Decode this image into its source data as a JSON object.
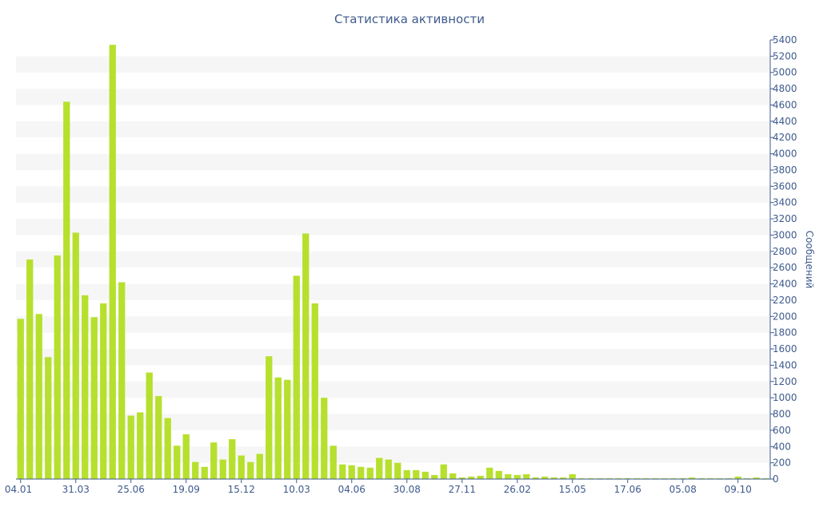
{
  "chart_data": {
    "type": "bar",
    "title": "Статистика активности",
    "ylabel": "Сообщений",
    "xlabel": "",
    "ylim": [
      0,
      5400
    ],
    "y_ticks": [
      0,
      200,
      400,
      600,
      800,
      1000,
      1200,
      1400,
      1600,
      1800,
      2000,
      2200,
      2400,
      2600,
      2800,
      3000,
      3200,
      3400,
      3600,
      3800,
      4000,
      4200,
      4400,
      4600,
      4800,
      5000,
      5200,
      5400
    ],
    "y_axis_position": "right",
    "grid": "alternating horizontal bands",
    "x_tick_labels": [
      {
        "index": 0,
        "label": "04.01"
      },
      {
        "index": 6,
        "label": "31.03"
      },
      {
        "index": 12,
        "label": "25.06"
      },
      {
        "index": 18,
        "label": "19.09"
      },
      {
        "index": 24,
        "label": "15.12"
      },
      {
        "index": 30,
        "label": "10.03"
      },
      {
        "index": 36,
        "label": "04.06"
      },
      {
        "index": 42,
        "label": "30.08"
      },
      {
        "index": 48,
        "label": "27.11"
      },
      {
        "index": 54,
        "label": "26.02"
      },
      {
        "index": 60,
        "label": "15.05"
      },
      {
        "index": 66,
        "label": "17.06"
      },
      {
        "index": 72,
        "label": "05.08"
      },
      {
        "index": 78,
        "label": "09.10"
      }
    ],
    "values": [
      1970,
      2700,
      2030,
      1500,
      2750,
      4640,
      3030,
      2260,
      1990,
      2160,
      5340,
      2420,
      780,
      820,
      1310,
      1020,
      750,
      410,
      550,
      210,
      150,
      450,
      240,
      490,
      290,
      210,
      310,
      1510,
      1250,
      1220,
      2500,
      3020,
      2160,
      1000,
      410,
      180,
      170,
      150,
      140,
      260,
      240,
      200,
      110,
      110,
      90,
      50,
      180,
      70,
      20,
      30,
      40,
      140,
      100,
      60,
      50,
      60,
      20,
      30,
      20,
      20,
      60,
      10,
      10,
      10,
      10,
      10,
      10,
      10,
      10,
      10,
      10,
      10,
      10,
      20,
      10,
      10,
      10,
      10,
      30,
      10,
      20,
      10
    ]
  }
}
